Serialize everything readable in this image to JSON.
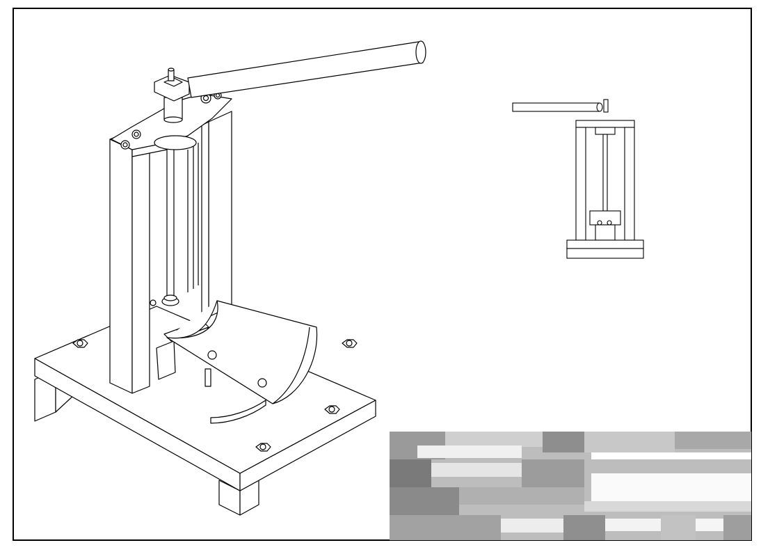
{
  "drawing": {
    "views": [
      {
        "name": "isometric-view"
      },
      {
        "name": "front-view"
      }
    ],
    "title_block": {
      "pixelated": true
    }
  },
  "colors": {
    "line": "#000000",
    "paper": "#ffffff"
  }
}
